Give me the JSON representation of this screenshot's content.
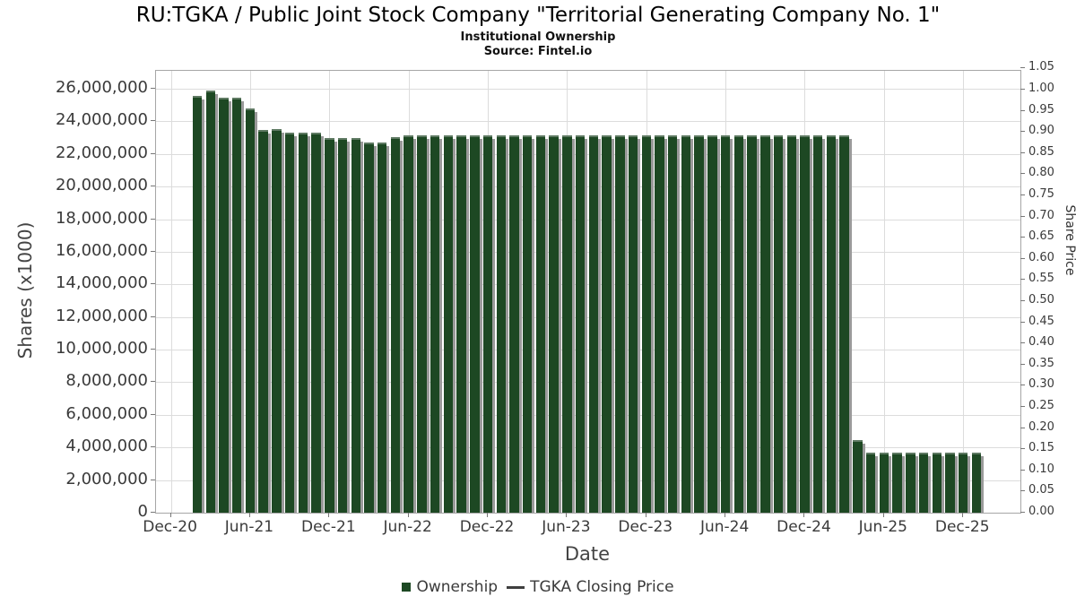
{
  "header": {
    "title": "RU:TGKA / Public Joint Stock Company \"Territorial Generating Company No. 1\"",
    "subtitle": "Institutional Ownership",
    "source": "Source: Fintel.io"
  },
  "chart_data": {
    "type": "bar",
    "title": "Institutional Ownership",
    "xlabel": "Date",
    "ylabel_left": "Shares (x1000)",
    "ylabel_right": "Share Price",
    "bar_color": "#1d4823",
    "shadow_color": "#9a9a9a",
    "grid_color": "#dcdcdc",
    "ylim_left": [
      0,
      27100000
    ],
    "ylim_right": [
      0,
      1.05
    ],
    "grid": true,
    "legend_position": "bottom-center",
    "x": [
      "Feb-21",
      "Mar-21",
      "Apr-21",
      "May-21",
      "Jun-21",
      "Jul-21",
      "Aug-21",
      "Sep-21",
      "Oct-21",
      "Nov-21",
      "Dec-21",
      "Jan-22",
      "Feb-22",
      "Mar-22",
      "Apr-22",
      "May-22",
      "Jun-22",
      "Jul-22",
      "Aug-22",
      "Sep-22",
      "Oct-22",
      "Nov-22",
      "Dec-22",
      "Jan-23",
      "Feb-23",
      "Mar-23",
      "Apr-23",
      "May-23",
      "Jun-23",
      "Jul-23",
      "Aug-23",
      "Sep-23",
      "Oct-23",
      "Nov-23",
      "Dec-23",
      "Jan-24",
      "Feb-24",
      "Mar-24",
      "Apr-24",
      "May-24",
      "Jun-24",
      "Jul-24",
      "Aug-24",
      "Sep-24",
      "Oct-24",
      "Nov-24",
      "Dec-24",
      "Jan-25",
      "Feb-25",
      "Mar-25",
      "Apr-25",
      "May-25",
      "Jun-25",
      "Jul-25",
      "Aug-25",
      "Sep-25",
      "Oct-25",
      "Nov-25",
      "Dec-25",
      "Jan-26"
    ],
    "series": [
      {
        "name": "Ownership",
        "values": [
          25550000,
          25900000,
          25450000,
          25450000,
          24800000,
          23450000,
          23550000,
          23300000,
          23300000,
          23300000,
          23000000,
          23000000,
          23000000,
          22700000,
          22700000,
          23050000,
          23150000,
          23150000,
          23150000,
          23150000,
          23150000,
          23150000,
          23150000,
          23150000,
          23150000,
          23150000,
          23150000,
          23150000,
          23150000,
          23150000,
          23150000,
          23150000,
          23150000,
          23150000,
          23150000,
          23150000,
          23150000,
          23150000,
          23150000,
          23150000,
          23150000,
          23150000,
          23150000,
          23150000,
          23150000,
          23150000,
          23150000,
          23150000,
          23150000,
          23150000,
          4450000,
          3700000,
          3700000,
          3700000,
          3700000,
          3700000,
          3700000,
          3700000,
          3700000,
          3700000
        ]
      },
      {
        "name": "TGKA Closing Price",
        "values": []
      }
    ],
    "x_ticks": [
      "Dec-20",
      "Jun-21",
      "Dec-21",
      "Jun-22",
      "Dec-22",
      "Jun-23",
      "Dec-23",
      "Jun-24",
      "Dec-24",
      "Jun-25",
      "Dec-25"
    ],
    "y_ticks_left": [
      "0",
      "2,000,000",
      "4,000,000",
      "6,000,000",
      "8,000,000",
      "10,000,000",
      "12,000,000",
      "14,000,000",
      "16,000,000",
      "18,000,000",
      "20,000,000",
      "22,000,000",
      "24,000,000",
      "26,000,000"
    ],
    "y_ticks_right": [
      "0.00",
      "0.05",
      "0.10",
      "0.15",
      "0.20",
      "0.25",
      "0.30",
      "0.35",
      "0.40",
      "0.45",
      "0.50",
      "0.55",
      "0.60",
      "0.65",
      "0.70",
      "0.75",
      "0.80",
      "0.85",
      "0.90",
      "0.95",
      "1.00",
      "1.05"
    ],
    "legend": [
      {
        "label": "Ownership",
        "marker": "square",
        "color": "#1d4823"
      },
      {
        "label": "TGKA Closing Price",
        "marker": "line",
        "color": "#3f3f3f"
      }
    ]
  }
}
